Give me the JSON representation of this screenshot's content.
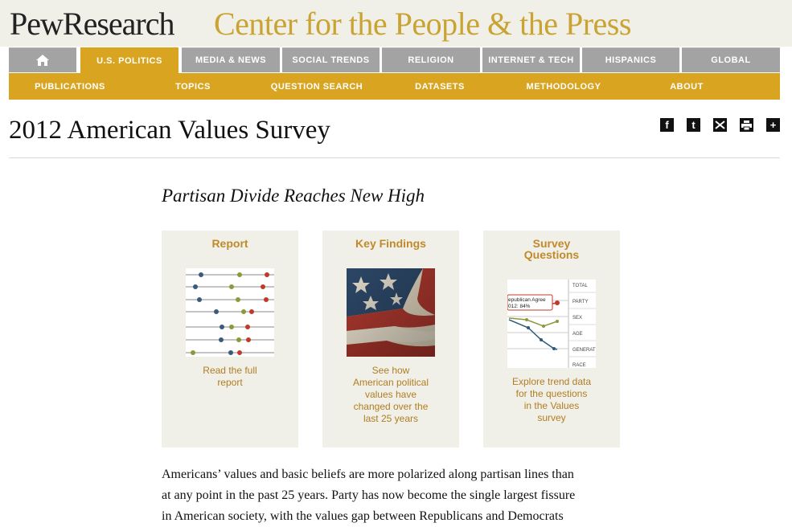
{
  "brand": {
    "pew": "PewResearch",
    "center": "Center for the People & the Press"
  },
  "nav_primary": [
    "U.S. POLITICS",
    "MEDIA & NEWS",
    "SOCIAL TRENDS",
    "RELIGION",
    "INTERNET & TECH",
    "HISPANICS",
    "GLOBAL"
  ],
  "nav_secondary": [
    "PUBLICATIONS",
    "TOPICS",
    "QUESTION SEARCH",
    "DATASETS",
    "METHODOLOGY",
    "ABOUT"
  ],
  "page_title": "2012 American Values Survey",
  "subtitle": "Partisan Divide Reaches New High",
  "cards": [
    {
      "title": "Report",
      "text_lines": [
        "Read the full",
        "report"
      ]
    },
    {
      "title": "Key Findings",
      "text_lines": [
        "See how",
        "American political",
        "values have",
        "changed over the",
        "last 25 years"
      ]
    },
    {
      "title_lines": [
        "Survey",
        "Questions"
      ],
      "text_lines": [
        "Explore trend data",
        "for the questions",
        "in the Values",
        "survey"
      ],
      "thumb": {
        "callout_line1": "epublican Agree",
        "callout_line2": "012: 84%",
        "tabs": [
          "TOTAL",
          "PARTY",
          "SEX",
          "AGE",
          "GENERAT",
          "RACE"
        ]
      }
    }
  ],
  "body_lines": [
    "Americans’ values and basic beliefs are more polarized along partisan lines than",
    "at any point in the past 25 years. Party has now become the single largest fissure",
    "in American society, with the values gap between Republicans and Democrats"
  ],
  "colors": {
    "gold": "#d9a521",
    "gray_tab": "#a3a3a3",
    "card_bg": "#f1f0e8",
    "card_title": "#c08a2a",
    "brand_gold": "#c9a433"
  },
  "icons": {
    "home": "home-icon",
    "share": [
      "facebook-icon",
      "twitter-icon",
      "email-icon",
      "print-icon",
      "plus-icon"
    ]
  }
}
